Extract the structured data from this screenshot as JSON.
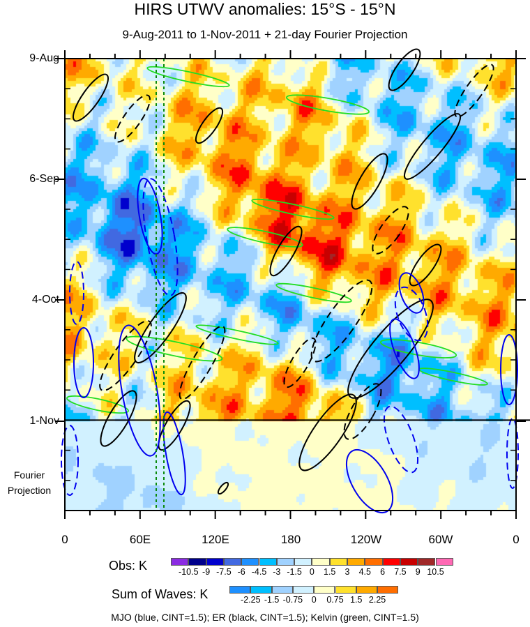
{
  "title": "HIRS UTWV anomalies: 15°S - 15°N",
  "subtitle": "9-Aug-2011 to 1-Nov-2011 + 21-day Fourier Projection",
  "footer": "MJO (blue, CINT=1.5); ER (black, CINT=1.5); Kelvin (green, CINT=1.5)",
  "chart_data": {
    "type": "heatmap",
    "xlabel": "",
    "ylabel": "",
    "x_ticks": [
      "0",
      "60E",
      "120E",
      "180",
      "120W",
      "60W",
      "0"
    ],
    "y_ticks": [
      "9-Aug",
      "6-Sep",
      "4-Oct",
      "1-Nov"
    ],
    "y_extra_label": "Fourier Projection",
    "days_observed": 84,
    "days_projection": 21,
    "obs_colorbar": {
      "title": "Obs: K",
      "levels": [
        "-10.5",
        "-9",
        "-7.5",
        "-6",
        "-4.5",
        "-3",
        "-1.5",
        "0",
        "1.5",
        "3",
        "4.5",
        "6",
        "7.5",
        "9",
        "10.5"
      ],
      "colors": [
        "#8b2be2",
        "#00008b",
        "#0000cd",
        "#4169e1",
        "#1e90ff",
        "#00bfff",
        "#a0d2ff",
        "#d1f1ff",
        "#ffffc8",
        "#ffe12d",
        "#ffaa00",
        "#ff6e00",
        "#ff0000",
        "#c80000",
        "#a02828",
        "#ff69b4"
      ]
    },
    "waves_colorbar": {
      "title": "Sum of Waves: K",
      "levels": [
        "-2.25",
        "-1.5",
        "-0.75",
        "0",
        "0.75",
        "1.5",
        "2.25"
      ],
      "colors": [
        "#1e90ff",
        "#00bfff",
        "#a0d2ff",
        "#d1f1ff",
        "#ffffc8",
        "#ffe12d",
        "#ffaa00",
        "#ff6e00"
      ]
    },
    "contours": [
      {
        "name": "MJO",
        "color": "#0000ff",
        "cint": 1.5
      },
      {
        "name": "ER",
        "color": "#000000",
        "cint": 1.5
      },
      {
        "name": "Kelvin",
        "color": "#00ee00",
        "cint": 1.5
      }
    ]
  }
}
